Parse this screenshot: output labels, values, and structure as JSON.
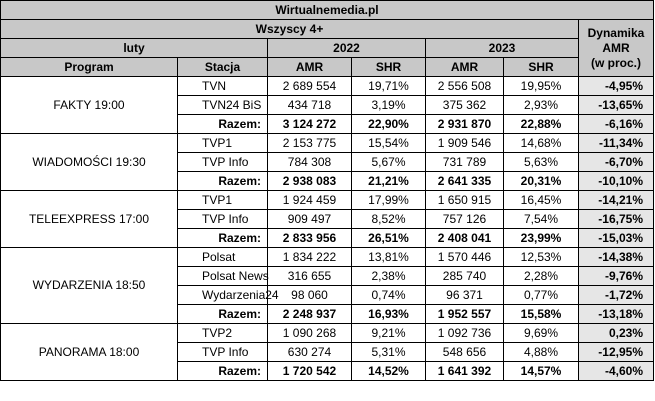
{
  "title": "Wirtualnemedia.pl",
  "audience": "Wszyscy 4+",
  "period": "luty",
  "years": [
    "2022",
    "2023"
  ],
  "dynamics_header": [
    "Dynamika",
    "AMR",
    "(w proc.)"
  ],
  "col_program": "Program",
  "col_station": "Stacja",
  "col_amr": "AMR",
  "col_shr": "SHR",
  "groups": [
    {
      "program": "FAKTY 19:00",
      "rows": [
        {
          "station": "TVN",
          "amr22": "2 689 554",
          "shr22": "19,71%",
          "amr23": "2 556 508",
          "shr23": "19,95%",
          "dyn": "-4,95%"
        },
        {
          "station": "TVN24 BiS",
          "amr22": "434 718",
          "shr22": "3,19%",
          "amr23": "375 362",
          "shr23": "2,93%",
          "dyn": "-13,65%"
        },
        {
          "station": "Razem:",
          "amr22": "3 124 272",
          "shr22": "22,90%",
          "amr23": "2 931 870",
          "shr23": "22,88%",
          "dyn": "-6,16%"
        }
      ]
    },
    {
      "program": "WIADOMOŚCI 19:30",
      "rows": [
        {
          "station": "TVP1",
          "amr22": "2 153 775",
          "shr22": "15,54%",
          "amr23": "1 909 546",
          "shr23": "14,68%",
          "dyn": "-11,34%"
        },
        {
          "station": "TVP Info",
          "amr22": "784 308",
          "shr22": "5,67%",
          "amr23": "731 789",
          "shr23": "5,63%",
          "dyn": "-6,70%"
        },
        {
          "station": "Razem:",
          "amr22": "2 938 083",
          "shr22": "21,21%",
          "amr23": "2 641 335",
          "shr23": "20,31%",
          "dyn": "-10,10%"
        }
      ]
    },
    {
      "program": "TELEEXPRESS 17:00",
      "rows": [
        {
          "station": "TVP1",
          "amr22": "1 924 459",
          "shr22": "17,99%",
          "amr23": "1 650 915",
          "shr23": "16,45%",
          "dyn": "-14,21%"
        },
        {
          "station": "TVP Info",
          "amr22": "909 497",
          "shr22": "8,52%",
          "amr23": "757 126",
          "shr23": "7,54%",
          "dyn": "-16,75%"
        },
        {
          "station": "Razem:",
          "amr22": "2 833 956",
          "shr22": "26,51%",
          "amr23": "2 408 041",
          "shr23": "23,99%",
          "dyn": "-15,03%"
        }
      ]
    },
    {
      "program": "WYDARZENIA 18:50",
      "rows": [
        {
          "station": "Polsat",
          "amr22": "1 834 222",
          "shr22": "13,81%",
          "amr23": "1 570 446",
          "shr23": "12,53%",
          "dyn": "-14,38%"
        },
        {
          "station": "Polsat News",
          "amr22": "316 655",
          "shr22": "2,38%",
          "amr23": "285 740",
          "shr23": "2,28%",
          "dyn": "-9,76%"
        },
        {
          "station": "Wydarzenia24",
          "amr22": "98 060",
          "shr22": "0,74%",
          "amr23": "96 371",
          "shr23": "0,77%",
          "dyn": "-1,72%"
        },
        {
          "station": "Razem:",
          "amr22": "2 248 937",
          "shr22": "16,93%",
          "amr23": "1 952 557",
          "shr23": "15,58%",
          "dyn": "-13,18%"
        }
      ]
    },
    {
      "program": "PANORAMA 18:00",
      "rows": [
        {
          "station": "TVP2",
          "amr22": "1 090 268",
          "shr22": "9,21%",
          "amr23": "1 092 736",
          "shr23": "9,69%",
          "dyn": "0,23%"
        },
        {
          "station": "TVP Info",
          "amr22": "630 274",
          "shr22": "5,31%",
          "amr23": "548 656",
          "shr23": "4,88%",
          "dyn": "-12,95%"
        },
        {
          "station": "Razem:",
          "amr22": "1 720 542",
          "shr22": "14,52%",
          "amr23": "1 641 392",
          "shr23": "14,57%",
          "dyn": "-4,60%"
        }
      ]
    }
  ]
}
